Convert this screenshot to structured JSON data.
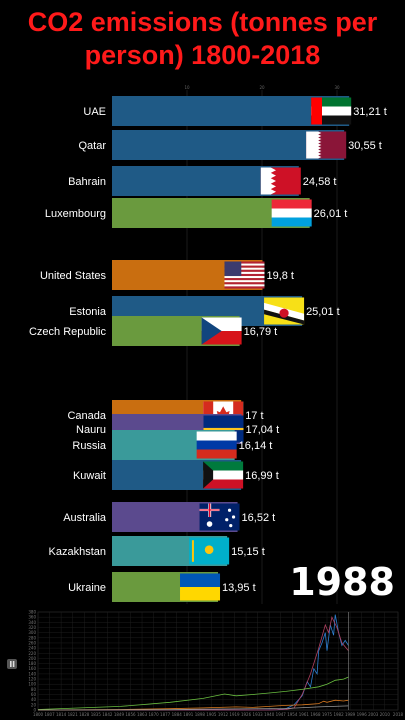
{
  "title": "CO2 emissions (tonnes per person) 1800-2018",
  "year": "1988",
  "colors": {
    "background": "#000000",
    "title": "#ff1a1a"
  },
  "chart_data": {
    "type": "bar",
    "orientation": "horizontal",
    "unit_suffix": "t",
    "xlim": [
      0,
      32
    ],
    "axis_ticks": [
      "10",
      "20",
      "30"
    ],
    "bars": [
      {
        "label": "UAE",
        "value": 31.21,
        "value_label": "31,21 t",
        "color": "#1f5a86",
        "flag": "uae"
      },
      {
        "label": "Qatar",
        "value": 30.55,
        "value_label": "30,55 t",
        "color": "#1f5a86",
        "flag": "qatar"
      },
      {
        "label": "Bahrain",
        "value": 24.58,
        "value_label": "24,58 t",
        "color": "#1f5a86",
        "flag": "bahrain"
      },
      {
        "label": "Luxembourg",
        "value": 26.01,
        "value_label": "26,01 t",
        "color": "#6a9a3e",
        "flag": "luxembourg"
      },
      {
        "label": "United States",
        "value": 19.8,
        "value_label": "19,8 t",
        "color": "#c96e10",
        "flag": "usa"
      },
      {
        "label": "Estonia",
        "value": 25.01,
        "value_label": "25,01 t",
        "color": "#1f5a86",
        "flag": "brunei"
      },
      {
        "label": "Czech Republic",
        "value": 16.79,
        "value_label": "16,79 t",
        "color": "#6a9a3e",
        "flag": "czech"
      },
      {
        "label": "Canada",
        "value": 17.0,
        "value_label": "17 t",
        "color": "#c96e10",
        "flag": "canada"
      },
      {
        "label": "Nauru",
        "value": 17.04,
        "value_label": "17,04 t",
        "color": "#5b4a8e",
        "flag": "nauru"
      },
      {
        "label": "Russia",
        "value": 16.14,
        "value_label": "16,14 t",
        "color": "#3a9a9a",
        "flag": "russia"
      },
      {
        "label": "Kuwait",
        "value": 16.99,
        "value_label": "16,99 t",
        "color": "#1f5a86",
        "flag": "kuwait"
      },
      {
        "label": "Australia",
        "value": 16.52,
        "value_label": "16,52 t",
        "color": "#5b4a8e",
        "flag": "australia"
      },
      {
        "label": "Kazakhstan",
        "value": 15.15,
        "value_label": "15,15 t",
        "color": "#3a9a9a",
        "flag": "kazakhstan"
      },
      {
        "label": "Ukraine",
        "value": 13.95,
        "value_label": "13,95 t",
        "color": "#6a9a3e",
        "flag": "ukraine"
      }
    ]
  },
  "mini_chart": {
    "type": "line",
    "x_ticks": [
      "1800",
      "1807",
      "1814",
      "1821",
      "1828",
      "1835",
      "1842",
      "1849",
      "1856",
      "1863",
      "1870",
      "1877",
      "1884",
      "1891",
      "1898",
      "1905",
      "1912",
      "1919",
      "1926",
      "1933",
      "1940",
      "1947",
      "1954",
      "1961",
      "1968",
      "1975",
      "1982",
      "1989",
      "1996",
      "2003",
      "2010",
      "2018"
    ],
    "y_ticks": [
      "0",
      "20",
      "40",
      "60",
      "80",
      "100",
      "120",
      "140",
      "160",
      "180",
      "200",
      "220",
      "240",
      "260",
      "280",
      "300",
      "320",
      "340",
      "360",
      "380"
    ],
    "ylim": [
      0,
      380
    ],
    "series": [
      {
        "color": "#2e7fd0",
        "values": [
          [
            1800,
            0
          ],
          [
            1900,
            0
          ],
          [
            1930,
            0
          ],
          [
            1945,
            1
          ],
          [
            1950,
            5
          ],
          [
            1955,
            20
          ],
          [
            1960,
            55
          ],
          [
            1963,
            110
          ],
          [
            1965,
            90
          ],
          [
            1967,
            160
          ],
          [
            1969,
            140
          ],
          [
            1970,
            230
          ],
          [
            1972,
            260
          ],
          [
            1974,
            300
          ],
          [
            1975,
            230
          ],
          [
            1977,
            330
          ],
          [
            1979,
            290
          ],
          [
            1980,
            370
          ],
          [
            1982,
            300
          ],
          [
            1984,
            250
          ],
          [
            1986,
            270
          ],
          [
            1988,
            250
          ]
        ]
      },
      {
        "color": "#b04060",
        "values": [
          [
            1800,
            0
          ],
          [
            1940,
            0
          ],
          [
            1950,
            2
          ],
          [
            1955,
            8
          ],
          [
            1960,
            60
          ],
          [
            1965,
            140
          ],
          [
            1970,
            240
          ],
          [
            1974,
            330
          ],
          [
            1976,
            300
          ],
          [
            1978,
            360
          ],
          [
            1981,
            320
          ],
          [
            1984,
            260
          ],
          [
            1988,
            230
          ]
        ]
      },
      {
        "color": "#6abf40",
        "values": [
          [
            1800,
            2
          ],
          [
            1850,
            14
          ],
          [
            1880,
            30
          ],
          [
            1900,
            45
          ],
          [
            1913,
            62
          ],
          [
            1920,
            55
          ],
          [
            1930,
            60
          ],
          [
            1940,
            66
          ],
          [
            1950,
            72
          ],
          [
            1960,
            80
          ],
          [
            1970,
            90
          ],
          [
            1975,
            100
          ],
          [
            1980,
            115
          ],
          [
            1985,
            120
          ],
          [
            1988,
            128
          ]
        ]
      },
      {
        "color": "#d97a20",
        "values": [
          [
            1800,
            0
          ],
          [
            1850,
            2
          ],
          [
            1880,
            5
          ],
          [
            1900,
            8
          ],
          [
            1920,
            12
          ],
          [
            1930,
            10
          ],
          [
            1940,
            14
          ],
          [
            1950,
            18
          ],
          [
            1960,
            20
          ],
          [
            1970,
            25
          ],
          [
            1973,
            34
          ],
          [
            1975,
            30
          ],
          [
            1980,
            38
          ],
          [
            1985,
            35
          ],
          [
            1988,
            38
          ]
        ]
      },
      {
        "color": "#999999",
        "values": [
          [
            1800,
            0
          ],
          [
            1880,
            1
          ],
          [
            1900,
            3
          ],
          [
            1950,
            6
          ],
          [
            1970,
            12
          ],
          [
            1988,
            16
          ]
        ]
      }
    ]
  }
}
